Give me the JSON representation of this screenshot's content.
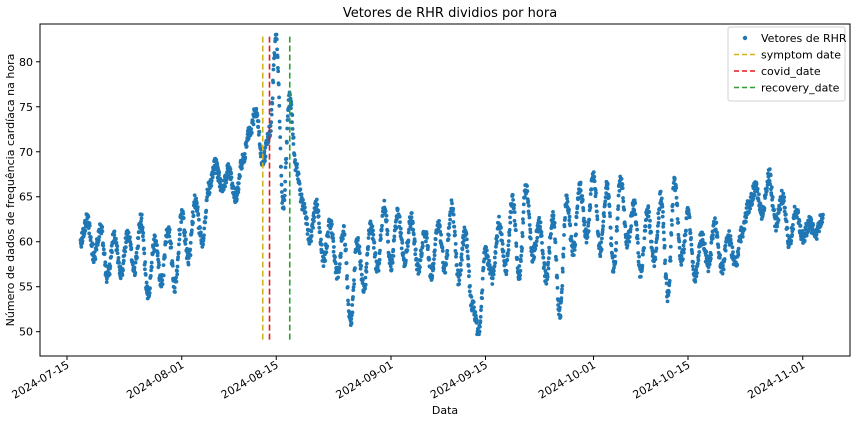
{
  "chart_data": {
    "type": "scatter",
    "title": "Vetores de RHR dividios por hora",
    "xlabel": "Data",
    "ylabel": "Número de dados de frequência cardíaca na hora",
    "x_range": [
      "2024-07-11",
      "2024-11-08"
    ],
    "y_range": [
      47.3,
      84.2
    ],
    "x_ticks": [
      "2024-07-15",
      "2024-08-01",
      "2024-08-15",
      "2024-09-01",
      "2024-09-15",
      "2024-10-01",
      "2024-10-15",
      "2024-11-01"
    ],
    "y_ticks": [
      50,
      55,
      60,
      65,
      70,
      75,
      80
    ],
    "grid": false,
    "legend_position": "top-right",
    "colors": {
      "points": "#1f77b4",
      "symptom": "#d4b21f",
      "covid": "#e31a1c",
      "recovery": "#2ca02c"
    },
    "legend": [
      {
        "label": "Vetores de RHR",
        "kind": "point",
        "color_key": "points"
      },
      {
        "label": "symptom date",
        "kind": "line",
        "color_key": "symptom"
      },
      {
        "label": "covid_date",
        "kind": "line",
        "color_key": "covid"
      },
      {
        "label": "recovery_date",
        "kind": "line",
        "color_key": "recovery"
      }
    ],
    "vertical_lines": [
      {
        "name": "symptom date",
        "x": "2024-08-13",
        "y_from": 49,
        "y_to": 82.8,
        "color_key": "symptom"
      },
      {
        "name": "covid_date",
        "x": "2024-08-14",
        "y_from": 49,
        "y_to": 82.8,
        "color_key": "covid"
      },
      {
        "name": "recovery_date",
        "x": "2024-08-17",
        "y_from": 49,
        "y_to": 82.8,
        "color_key": "recovery"
      }
    ],
    "series": [
      {
        "name": "Vetores de RHR",
        "color_key": "points",
        "points": [
          [
            "2024-07-17",
            60.0
          ],
          [
            "2024-07-18",
            62.5
          ],
          [
            "2024-07-19",
            58.5
          ],
          [
            "2024-07-20",
            61.5
          ],
          [
            "2024-07-21",
            56.0
          ],
          [
            "2024-07-22",
            60.5
          ],
          [
            "2024-07-23",
            56.5
          ],
          [
            "2024-07-24",
            61.0
          ],
          [
            "2024-07-25",
            57.0
          ],
          [
            "2024-07-26",
            62.5
          ],
          [
            "2024-07-27",
            54.0
          ],
          [
            "2024-07-28",
            60.0
          ],
          [
            "2024-07-29",
            55.5
          ],
          [
            "2024-07-30",
            61.5
          ],
          [
            "2024-07-31",
            55.0
          ],
          [
            "2024-08-01",
            63.0
          ],
          [
            "2024-08-02",
            58.0
          ],
          [
            "2024-08-03",
            64.5
          ],
          [
            "2024-08-04",
            60.0
          ],
          [
            "2024-08-05",
            66.0
          ],
          [
            "2024-08-06",
            68.5
          ],
          [
            "2024-08-07",
            66.0
          ],
          [
            "2024-08-08",
            68.0
          ],
          [
            "2024-08-09",
            65.0
          ],
          [
            "2024-08-10",
            69.0
          ],
          [
            "2024-08-11",
            72.0
          ],
          [
            "2024-08-12",
            74.5
          ],
          [
            "2024-08-13",
            69.0
          ],
          [
            "2024-08-14",
            72.0
          ],
          [
            "2024-08-15",
            82.5
          ],
          [
            "2024-08-16",
            64.0
          ],
          [
            "2024-08-17",
            76.0
          ],
          [
            "2024-08-18",
            68.0
          ],
          [
            "2024-08-19",
            64.0
          ],
          [
            "2024-08-20",
            60.5
          ],
          [
            "2024-08-21",
            64.0
          ],
          [
            "2024-08-22",
            58.0
          ],
          [
            "2024-08-23",
            62.0
          ],
          [
            "2024-08-24",
            56.5
          ],
          [
            "2024-08-25",
            61.0
          ],
          [
            "2024-08-26",
            51.0
          ],
          [
            "2024-08-27",
            60.0
          ],
          [
            "2024-08-28",
            55.0
          ],
          [
            "2024-08-29",
            62.0
          ],
          [
            "2024-08-30",
            57.0
          ],
          [
            "2024-08-31",
            64.0
          ],
          [
            "2024-09-01",
            57.5
          ],
          [
            "2024-09-02",
            63.0
          ],
          [
            "2024-09-03",
            58.0
          ],
          [
            "2024-09-04",
            62.5
          ],
          [
            "2024-09-05",
            57.0
          ],
          [
            "2024-09-06",
            61.0
          ],
          [
            "2024-09-07",
            56.5
          ],
          [
            "2024-09-08",
            62.0
          ],
          [
            "2024-09-09",
            57.0
          ],
          [
            "2024-09-10",
            64.0
          ],
          [
            "2024-09-11",
            56.0
          ],
          [
            "2024-09-12",
            61.0
          ],
          [
            "2024-09-13",
            53.0
          ],
          [
            "2024-09-14",
            50.0
          ],
          [
            "2024-09-15",
            59.0
          ],
          [
            "2024-09-16",
            56.0
          ],
          [
            "2024-09-17",
            62.0
          ],
          [
            "2024-09-18",
            57.0
          ],
          [
            "2024-09-19",
            64.5
          ],
          [
            "2024-09-20",
            56.5
          ],
          [
            "2024-09-21",
            66.0
          ],
          [
            "2024-09-22",
            58.5
          ],
          [
            "2024-09-23",
            62.0
          ],
          [
            "2024-09-24",
            56.0
          ],
          [
            "2024-09-25",
            63.0
          ],
          [
            "2024-09-26",
            52.0
          ],
          [
            "2024-09-27",
            64.5
          ],
          [
            "2024-09-28",
            59.0
          ],
          [
            "2024-09-29",
            66.0
          ],
          [
            "2024-09-30",
            60.5
          ],
          [
            "2024-10-01",
            67.5
          ],
          [
            "2024-10-02",
            59.0
          ],
          [
            "2024-10-03",
            66.0
          ],
          [
            "2024-10-04",
            57.0
          ],
          [
            "2024-10-05",
            67.0
          ],
          [
            "2024-10-06",
            60.0
          ],
          [
            "2024-10-07",
            64.0
          ],
          [
            "2024-10-08",
            56.5
          ],
          [
            "2024-10-09",
            63.5
          ],
          [
            "2024-10-10",
            58.0
          ],
          [
            "2024-10-11",
            65.0
          ],
          [
            "2024-10-12",
            54.0
          ],
          [
            "2024-10-13",
            66.5
          ],
          [
            "2024-10-14",
            58.0
          ],
          [
            "2024-10-15",
            63.0
          ],
          [
            "2024-10-16",
            56.0
          ],
          [
            "2024-10-17",
            60.5
          ],
          [
            "2024-10-18",
            57.5
          ],
          [
            "2024-10-19",
            62.0
          ],
          [
            "2024-10-20",
            57.0
          ],
          [
            "2024-10-21",
            60.5
          ],
          [
            "2024-10-22",
            57.5
          ],
          [
            "2024-10-23",
            61.0
          ],
          [
            "2024-10-24",
            64.0
          ],
          [
            "2024-10-25",
            66.0
          ],
          [
            "2024-10-26",
            63.0
          ],
          [
            "2024-10-27",
            67.5
          ],
          [
            "2024-10-28",
            62.0
          ],
          [
            "2024-10-29",
            65.0
          ],
          [
            "2024-10-30",
            60.0
          ],
          [
            "2024-10-31",
            63.5
          ],
          [
            "2024-11-01",
            60.5
          ],
          [
            "2024-11-02",
            62.0
          ],
          [
            "2024-11-03",
            61.0
          ],
          [
            "2024-11-04",
            63.0
          ]
        ]
      }
    ]
  }
}
